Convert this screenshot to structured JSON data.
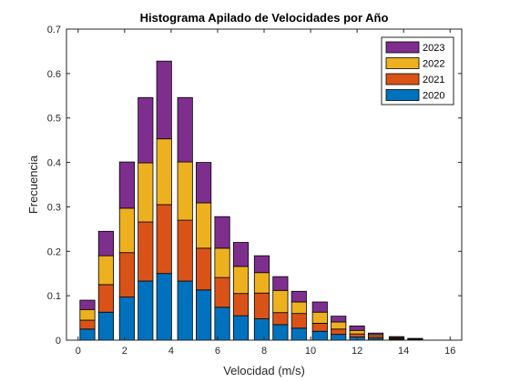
{
  "chart_data": {
    "type": "bar",
    "stacked": true,
    "title": "Histograma Apilado de Velocidades por Año",
    "xlabel": "Velocidad (m/s)",
    "ylabel": "Frecuencia",
    "xlim": [
      -0.5,
      16.5
    ],
    "ylim": [
      0,
      0.7
    ],
    "xticks": [
      "0",
      "2",
      "4",
      "6",
      "8",
      "10",
      "12",
      "14",
      "16"
    ],
    "yticks": [
      "0",
      "0.1",
      "0.2",
      "0.3",
      "0.4",
      "0.5",
      "0.6",
      "0.7"
    ],
    "x": [
      0.4,
      1.2,
      2.1,
      2.9,
      3.7,
      4.6,
      5.4,
      6.2,
      7.0,
      7.9,
      8.7,
      9.5,
      10.4,
      11.2,
      12.0,
      12.8,
      13.7,
      14.5
    ],
    "legend_position": "top-right",
    "series": [
      {
        "name": "2020",
        "color": "#0072BD",
        "values": [
          0.025,
          0.063,
          0.097,
          0.133,
          0.15,
          0.133,
          0.113,
          0.074,
          0.055,
          0.048,
          0.035,
          0.027,
          0.02,
          0.013,
          0.007,
          0.004,
          0.002,
          0.001
        ]
      },
      {
        "name": "2021",
        "color": "#D95319",
        "values": [
          0.02,
          0.062,
          0.1,
          0.133,
          0.155,
          0.137,
          0.094,
          0.067,
          0.05,
          0.058,
          0.027,
          0.033,
          0.018,
          0.012,
          0.007,
          0.004,
          0.002,
          0.001
        ]
      },
      {
        "name": "2022",
        "color": "#EDB120",
        "values": [
          0.024,
          0.065,
          0.1,
          0.133,
          0.148,
          0.131,
          0.102,
          0.066,
          0.061,
          0.046,
          0.05,
          0.026,
          0.025,
          0.016,
          0.008,
          0.004,
          0.002,
          0.001
        ]
      },
      {
        "name": "2023",
        "color": "#7E2F8E",
        "values": [
          0.021,
          0.055,
          0.104,
          0.147,
          0.175,
          0.145,
          0.091,
          0.071,
          0.054,
          0.038,
          0.031,
          0.024,
          0.023,
          0.013,
          0.01,
          0.004,
          0.002,
          0.001
        ]
      }
    ]
  }
}
